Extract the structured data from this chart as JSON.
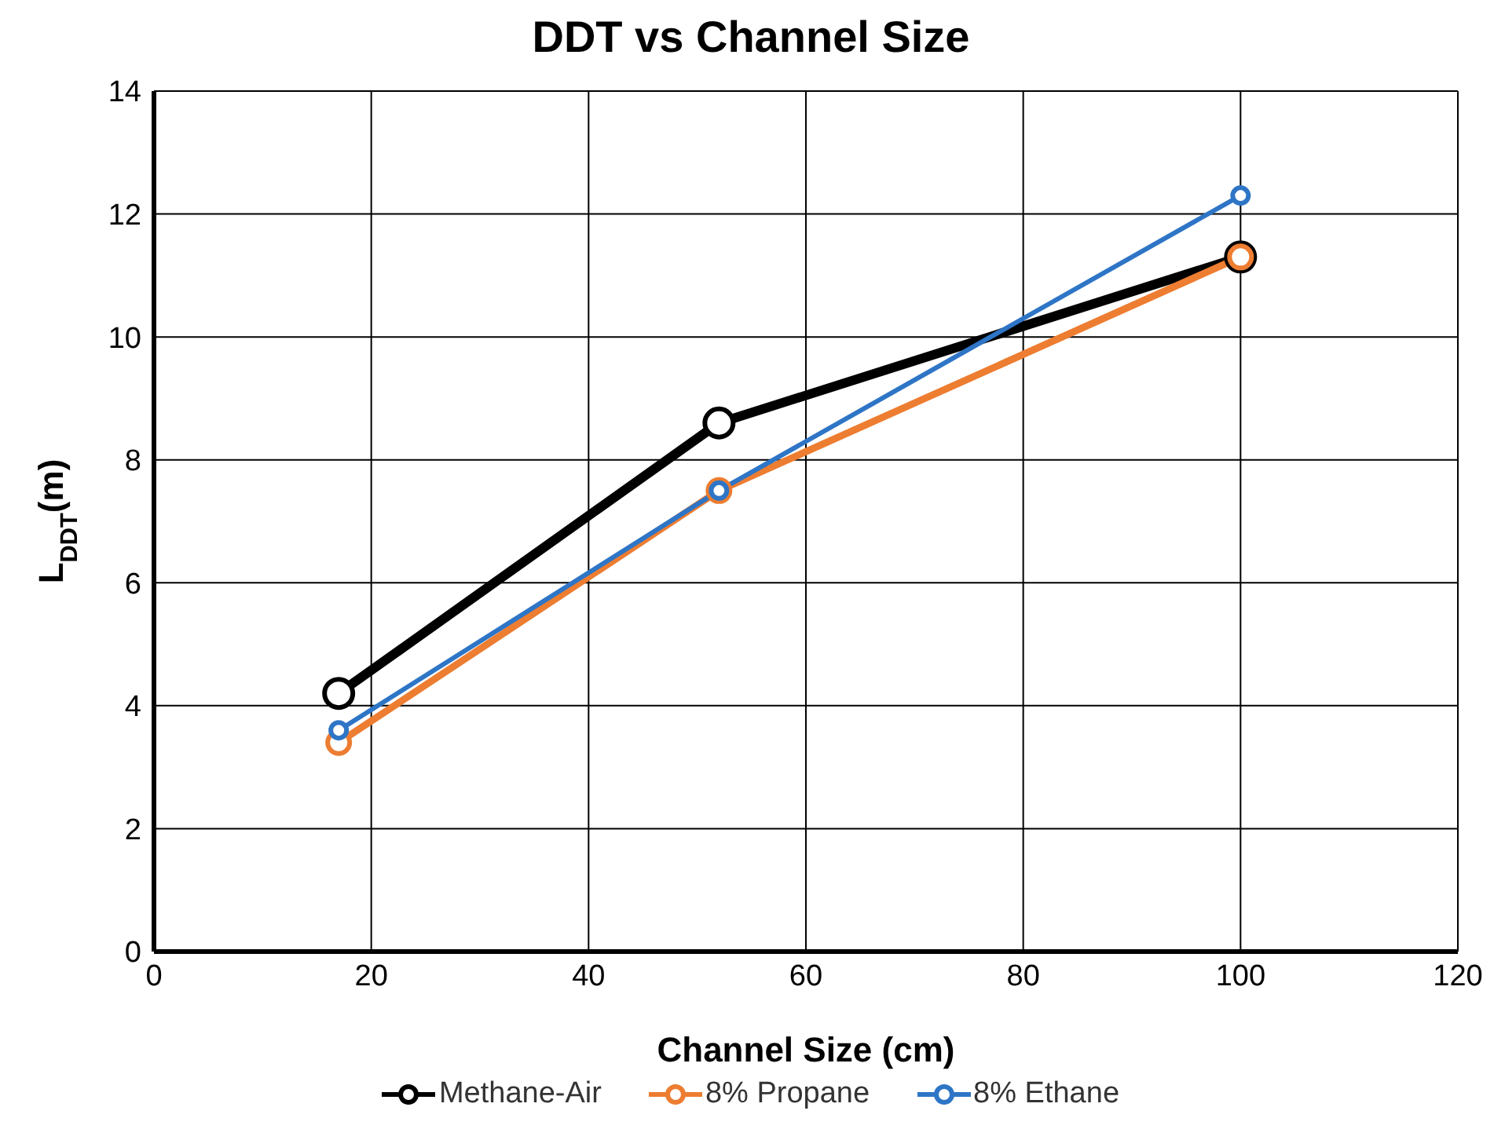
{
  "chart_data": {
    "type": "line",
    "title": "DDT vs Channel Size",
    "xlabel": "Channel Size (cm)",
    "ylabel": "L$_{DDT}$(m)",
    "x": [
      17,
      52,
      100
    ],
    "series": [
      {
        "name": "Methane-Air",
        "color": "#000000",
        "values": [
          4.2,
          8.6,
          11.3
        ]
      },
      {
        "name": "8% Propane",
        "color": "#ed7d31",
        "values": [
          3.4,
          7.5,
          11.3
        ]
      },
      {
        "name": "8% Ethane",
        "color": "#2e75c6",
        "values": [
          3.6,
          7.5,
          12.3
        ]
      }
    ],
    "xlim": [
      0,
      120
    ],
    "xticks": [
      0,
      20,
      40,
      60,
      80,
      100,
      120
    ],
    "ylim": [
      0,
      14
    ],
    "yticks": [
      0,
      2,
      4,
      6,
      8,
      10,
      12,
      14
    ],
    "grid": true,
    "legend": "bottom",
    "marker": "circle",
    "line_style": "solid"
  }
}
